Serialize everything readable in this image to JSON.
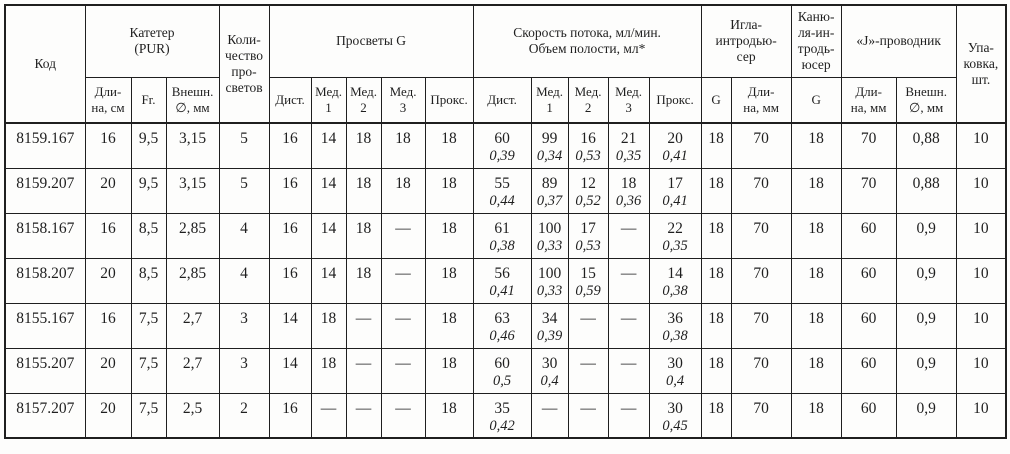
{
  "table": {
    "header": {
      "code": "Код",
      "catheter_group": "Катетер\n(PUR)",
      "catheter_cols": [
        "Дли-\nна, см",
        "Fr.",
        "Внешн.\n∅, мм"
      ],
      "lumen_count": "Коли-\nчество\nпро-\nсветов",
      "lumens_group": "Просветы G",
      "lumens_cols": [
        "Дист.",
        "Мед.\n1",
        "Мед.\n2",
        "Мед.\n3",
        "Прокс."
      ],
      "flow_group": "Скорость потока, мл/мин.\nОбъем полости, мл*",
      "flow_cols": [
        "Дист.",
        "Мед.\n1",
        "Мед.\n2",
        "Мед.\n3",
        "Прокс."
      ],
      "needle_group": "Игла-\nинтродью-\nсер",
      "needle_cols": [
        "G",
        "Дли-\nна,  мм"
      ],
      "cannula_group": "Каню-\nля-ин-\nтродь-\nюсер",
      "cannula_col": "G",
      "guidewire_group": "«J»-проводник",
      "guidewire_cols": [
        "Дли-\nна, мм",
        "Внешн.\n∅, мм"
      ],
      "packaging": "Упа-\nковка,\nшт."
    },
    "rows": [
      {
        "code": "8159.167",
        "length_cm": "16",
        "fr": "9,5",
        "outer_d": "3,15",
        "lumen_count": "5",
        "lumens_g": [
          "16",
          "14",
          "18",
          "18",
          "18"
        ],
        "flow": [
          {
            "rate": "60",
            "vol": "0,39"
          },
          {
            "rate": "99",
            "vol": "0,34"
          },
          {
            "rate": "16",
            "vol": "0,53"
          },
          {
            "rate": "21",
            "vol": "0,35"
          },
          {
            "rate": "20",
            "vol": "0,41"
          }
        ],
        "needle_g": "18",
        "needle_len": "70",
        "cannula_g": "18",
        "guide_len": "70",
        "guide_d": "0,88",
        "pack": "10"
      },
      {
        "code": "8159.207",
        "length_cm": "20",
        "fr": "9,5",
        "outer_d": "3,15",
        "lumen_count": "5",
        "lumens_g": [
          "16",
          "14",
          "18",
          "18",
          "18"
        ],
        "flow": [
          {
            "rate": "55",
            "vol": "0,44"
          },
          {
            "rate": "89",
            "vol": "0,37"
          },
          {
            "rate": "12",
            "vol": "0,52"
          },
          {
            "rate": "18",
            "vol": "0,36"
          },
          {
            "rate": "17",
            "vol": "0,41"
          }
        ],
        "needle_g": "18",
        "needle_len": "70",
        "cannula_g": "18",
        "guide_len": "70",
        "guide_d": "0,88",
        "pack": "10"
      },
      {
        "code": "8158.167",
        "length_cm": "16",
        "fr": "8,5",
        "outer_d": "2,85",
        "lumen_count": "4",
        "lumens_g": [
          "16",
          "14",
          "18",
          "—",
          "18"
        ],
        "flow": [
          {
            "rate": "61",
            "vol": "0,38"
          },
          {
            "rate": "100",
            "vol": "0,33"
          },
          {
            "rate": "17",
            "vol": "0,53"
          },
          {
            "rate": "—",
            "vol": ""
          },
          {
            "rate": "22",
            "vol": "0,35"
          }
        ],
        "needle_g": "18",
        "needle_len": "70",
        "cannula_g": "18",
        "guide_len": "60",
        "guide_d": "0,9",
        "pack": "10"
      },
      {
        "code": "8158.207",
        "length_cm": "20",
        "fr": "8,5",
        "outer_d": "2,85",
        "lumen_count": "4",
        "lumens_g": [
          "16",
          "14",
          "18",
          "—",
          "18"
        ],
        "flow": [
          {
            "rate": "56",
            "vol": "0,41"
          },
          {
            "rate": "100",
            "vol": "0,33"
          },
          {
            "rate": "15",
            "vol": "0,59"
          },
          {
            "rate": "—",
            "vol": ""
          },
          {
            "rate": "14",
            "vol": "0,38"
          }
        ],
        "needle_g": "18",
        "needle_len": "70",
        "cannula_g": "18",
        "guide_len": "60",
        "guide_d": "0,9",
        "pack": "10"
      },
      {
        "code": "8155.167",
        "length_cm": "16",
        "fr": "7,5",
        "outer_d": "2,7",
        "lumen_count": "3",
        "lumens_g": [
          "14",
          "18",
          "—",
          "—",
          "18"
        ],
        "flow": [
          {
            "rate": "63",
            "vol": "0,46"
          },
          {
            "rate": "34",
            "vol": "0,39"
          },
          {
            "rate": "—",
            "vol": ""
          },
          {
            "rate": "—",
            "vol": ""
          },
          {
            "rate": "36",
            "vol": "0,38"
          }
        ],
        "needle_g": "18",
        "needle_len": "70",
        "cannula_g": "18",
        "guide_len": "60",
        "guide_d": "0,9",
        "pack": "10"
      },
      {
        "code": "8155.207",
        "length_cm": "20",
        "fr": "7,5",
        "outer_d": "2,7",
        "lumen_count": "3",
        "lumens_g": [
          "14",
          "18",
          "—",
          "—",
          "18"
        ],
        "flow": [
          {
            "rate": "60",
            "vol": "0,5"
          },
          {
            "rate": "30",
            "vol": "0,4"
          },
          {
            "rate": "—",
            "vol": ""
          },
          {
            "rate": "—",
            "vol": ""
          },
          {
            "rate": "30",
            "vol": "0,4"
          }
        ],
        "needle_g": "18",
        "needle_len": "70",
        "cannula_g": "18",
        "guide_len": "60",
        "guide_d": "0,9",
        "pack": "10"
      },
      {
        "code": "8157.207",
        "length_cm": "20",
        "fr": "7,5",
        "outer_d": "2,5",
        "lumen_count": "2",
        "lumens_g": [
          "16",
          "—",
          "—",
          "—",
          "18"
        ],
        "flow": [
          {
            "rate": "35",
            "vol": "0,42"
          },
          {
            "rate": "—",
            "vol": ""
          },
          {
            "rate": "—",
            "vol": ""
          },
          {
            "rate": "—",
            "vol": ""
          },
          {
            "rate": "30",
            "vol": "0,45"
          }
        ],
        "needle_g": "18",
        "needle_len": "70",
        "cannula_g": "18",
        "guide_len": "60",
        "guide_d": "0,9",
        "pack": "10"
      }
    ]
  },
  "colors": {
    "text": "#1f1f1f",
    "border": "#1f1f1f",
    "background": "#fdfdfc"
  }
}
